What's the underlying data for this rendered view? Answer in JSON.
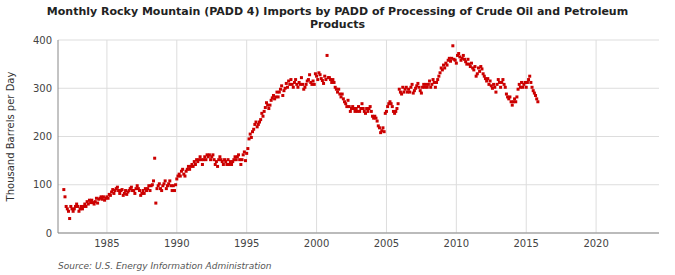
{
  "chart_data": {
    "type": "scatter",
    "title": "Monthly Rocky Mountain (PADD 4) Imports by PADD of Processing of Crude Oil and Petroleum\nProducts",
    "y_label": "Thousand Barrels per Day",
    "source": "Source: U.S. Energy Information Administration",
    "color": "#CC0000",
    "marker": "square",
    "grid": true,
    "xlim": [
      1981.5,
      2024.5
    ],
    "xticks": [
      1985,
      1990,
      1995,
      2000,
      2005,
      2010,
      2015,
      2020
    ],
    "ylim": [
      0,
      400
    ],
    "yticks": [
      0,
      100,
      200,
      300,
      400
    ],
    "x": [
      1981.9166666666667,
      1982,
      1982.0833333333333,
      1982.1666666666667,
      1982.25,
      1982.3333333333333,
      1982.4166666666667,
      1982.5,
      1982.5833333333333,
      1982.6666666666667,
      1982.75,
      1982.8333333333333,
      1982.9166666666667,
      1983,
      1983.0833333333333,
      1983.1666666666667,
      1983.25,
      1983.3333333333333,
      1983.4166666666667,
      1983.5,
      1983.5833333333333,
      1983.6666666666667,
      1983.75,
      1983.8333333333333,
      1983.9166666666667,
      1984,
      1984.0833333333333,
      1984.1666666666667,
      1984.25,
      1984.3333333333333,
      1984.4166666666667,
      1984.5,
      1984.5833333333333,
      1984.6666666666667,
      1984.75,
      1984.8333333333333,
      1984.9166666666667,
      1985,
      1985.0833333333333,
      1985.1666666666667,
      1985.25,
      1985.3333333333333,
      1985.4166666666667,
      1985.5,
      1985.5833333333333,
      1985.6666666666667,
      1985.75,
      1985.8333333333333,
      1985.9166666666667,
      1986,
      1986.0833333333333,
      1986.1666666666667,
      1986.25,
      1986.3333333333333,
      1986.4166666666667,
      1986.5,
      1986.5833333333333,
      1986.6666666666667,
      1986.75,
      1986.8333333333333,
      1986.9166666666667,
      1987,
      1987.0833333333333,
      1987.1666666666667,
      1987.25,
      1987.3333333333333,
      1987.4166666666667,
      1987.5,
      1987.5833333333333,
      1987.6666666666667,
      1987.75,
      1987.8333333333333,
      1987.9166666666667,
      1988,
      1988.0833333333333,
      1988.1666666666667,
      1988.25,
      1988.3333333333333,
      1988.4166666666667,
      1988.5,
      1988.5833333333333,
      1988.6666666666667,
      1988.75,
      1988.8333333333333,
      1988.9166666666667,
      1989,
      1989.0833333333333,
      1989.1666666666667,
      1989.25,
      1989.3333333333333,
      1989.4166666666667,
      1989.5,
      1989.5833333333333,
      1989.6666666666667,
      1989.75,
      1989.8333333333333,
      1989.9166666666667,
      1990,
      1990.0833333333333,
      1990.1666666666667,
      1990.25,
      1990.3333333333333,
      1990.4166666666667,
      1990.5,
      1990.5833333333333,
      1990.6666666666667,
      1990.75,
      1990.8333333333333,
      1990.9166666666667,
      1991,
      1991.0833333333333,
      1991.1666666666667,
      1991.25,
      1991.3333333333333,
      1991.4166666666667,
      1991.5,
      1991.5833333333333,
      1991.6666666666667,
      1991.75,
      1991.8333333333333,
      1991.9166666666667,
      1992,
      1992.0833333333333,
      1992.1666666666667,
      1992.25,
      1992.3333333333333,
      1992.4166666666667,
      1992.5,
      1992.5833333333333,
      1992.6666666666667,
      1992.75,
      1992.8333333333333,
      1992.9166666666667,
      1993,
      1993.0833333333333,
      1993.1666666666667,
      1993.25,
      1993.3333333333333,
      1993.4166666666667,
      1993.5,
      1993.5833333333333,
      1993.6666666666667,
      1993.75,
      1993.8333333333333,
      1993.9166666666667,
      1994,
      1994.0833333333333,
      1994.1666666666667,
      1994.25,
      1994.3333333333333,
      1994.4166666666667,
      1994.5,
      1994.5833333333333,
      1994.6666666666667,
      1994.75,
      1994.8333333333333,
      1994.9166666666667,
      1995,
      1995.0833333333333,
      1995.1666666666667,
      1995.25,
      1995.3333333333333,
      1995.4166666666667,
      1995.5,
      1995.5833333333333,
      1995.6666666666667,
      1995.75,
      1995.8333333333333,
      1995.9166666666667,
      1996,
      1996.0833333333333,
      1996.1666666666667,
      1996.25,
      1996.3333333333333,
      1996.4166666666667,
      1996.5,
      1996.5833333333333,
      1996.6666666666667,
      1996.75,
      1996.8333333333333,
      1996.9166666666667,
      1997,
      1997.0833333333333,
      1997.1666666666667,
      1997.25,
      1997.3333333333333,
      1997.4166666666667,
      1997.5,
      1997.5833333333333,
      1997.6666666666667,
      1997.75,
      1997.8333333333333,
      1997.9166666666667,
      1998,
      1998.0833333333333,
      1998.1666666666667,
      1998.25,
      1998.3333333333333,
      1998.4166666666667,
      1998.5,
      1998.5833333333333,
      1998.6666666666667,
      1998.75,
      1998.8333333333333,
      1998.9166666666667,
      1999,
      1999.0833333333333,
      1999.1666666666667,
      1999.25,
      1999.3333333333333,
      1999.4166666666667,
      1999.5,
      1999.5833333333333,
      1999.6666666666667,
      1999.75,
      1999.8333333333333,
      1999.9166666666667,
      2000,
      2000.0833333333333,
      2000.1666666666667,
      2000.25,
      2000.3333333333333,
      2000.4166666666667,
      2000.5,
      2000.5833333333333,
      2000.6666666666667,
      2000.75,
      2000.8333333333333,
      2000.9166666666667,
      2001,
      2001.0833333333333,
      2001.1666666666667,
      2001.25,
      2001.3333333333333,
      2001.4166666666667,
      2001.5,
      2001.5833333333333,
      2001.6666666666667,
      2001.75,
      2001.8333333333333,
      2001.9166666666667,
      2002,
      2002.0833333333333,
      2002.1666666666667,
      2002.25,
      2002.3333333333333,
      2002.4166666666667,
      2002.5,
      2002.5833333333333,
      2002.6666666666667,
      2002.75,
      2002.8333333333333,
      2002.9166666666667,
      2003,
      2003.0833333333333,
      2003.1666666666667,
      2003.25,
      2003.3333333333333,
      2003.4166666666667,
      2003.5,
      2003.5833333333333,
      2003.6666666666667,
      2003.75,
      2003.8333333333333,
      2003.9166666666667,
      2004,
      2004.0833333333333,
      2004.1666666666667,
      2004.25,
      2004.3333333333333,
      2004.4166666666667,
      2004.5,
      2004.5833333333333,
      2004.6666666666667,
      2004.75,
      2004.8333333333333,
      2004.9166666666667,
      2005,
      2005.0833333333333,
      2005.1666666666667,
      2005.25,
      2005.3333333333333,
      2005.4166666666667,
      2005.5,
      2005.5833333333333,
      2005.6666666666667,
      2005.75,
      2005.8333333333333,
      2005.9166666666667,
      2006,
      2006.0833333333333,
      2006.1666666666667,
      2006.25,
      2006.3333333333333,
      2006.4166666666667,
      2006.5,
      2006.5833333333333,
      2006.6666666666667,
      2006.75,
      2006.8333333333333,
      2006.9166666666667,
      2007,
      2007.0833333333333,
      2007.1666666666667,
      2007.25,
      2007.3333333333333,
      2007.4166666666667,
      2007.5,
      2007.5833333333333,
      2007.6666666666667,
      2007.75,
      2007.8333333333333,
      2007.9166666666667,
      2008,
      2008.0833333333333,
      2008.1666666666667,
      2008.25,
      2008.3333333333333,
      2008.4166666666667,
      2008.5,
      2008.5833333333333,
      2008.6666666666667,
      2008.75,
      2008.8333333333333,
      2008.9166666666667,
      2009,
      2009.0833333333333,
      2009.1666666666667,
      2009.25,
      2009.3333333333333,
      2009.4166666666667,
      2009.5,
      2009.5833333333333,
      2009.6666666666667,
      2009.75,
      2009.8333333333333,
      2009.9166666666667,
      2010,
      2010.0833333333333,
      2010.1666666666667,
      2010.25,
      2010.3333333333333,
      2010.4166666666667,
      2010.5,
      2010.5833333333333,
      2010.6666666666667,
      2010.75,
      2010.8333333333333,
      2010.9166666666667,
      2011,
      2011.0833333333333,
      2011.1666666666667,
      2011.25,
      2011.3333333333333,
      2011.4166666666667,
      2011.5,
      2011.5833333333333,
      2011.6666666666667,
      2011.75,
      2011.8333333333333,
      2011.9166666666667,
      2012,
      2012.0833333333333,
      2012.1666666666667,
      2012.25,
      2012.3333333333333,
      2012.4166666666667,
      2012.5,
      2012.5833333333333,
      2012.6666666666667,
      2012.75,
      2012.8333333333333,
      2012.9166666666667,
      2013,
      2013.0833333333333,
      2013.1666666666667,
      2013.25,
      2013.3333333333333,
      2013.4166666666667,
      2013.5,
      2013.5833333333333,
      2013.6666666666667,
      2013.75,
      2013.8333333333333,
      2013.9166666666667,
      2014,
      2014.0833333333333,
      2014.1666666666667,
      2014.25,
      2014.3333333333333,
      2014.4166666666667,
      2014.5,
      2014.5833333333333,
      2014.6666666666667,
      2014.75,
      2014.8333333333333,
      2014.9166666666667,
      2015,
      2015.0833333333333,
      2015.1666666666667,
      2015.25,
      2015.3333333333333,
      2015.4166666666667,
      2015.5,
      2015.5833333333333,
      2015.6666666666667,
      2015.75,
      2015.8333333333333
    ],
    "values": [
      90,
      75,
      55,
      50,
      45,
      30,
      55,
      50,
      45,
      50,
      55,
      60,
      55,
      45,
      50,
      55,
      50,
      55,
      60,
      55,
      65,
      60,
      68,
      63,
      68,
      63,
      60,
      65,
      72,
      62,
      70,
      72,
      75,
      70,
      75,
      68,
      72,
      75,
      72,
      80,
      78,
      85,
      90,
      82,
      88,
      92,
      95,
      88,
      82,
      88,
      90,
      78,
      82,
      88,
      80,
      85,
      88,
      92,
      95,
      88,
      88,
      82,
      92,
      98,
      92,
      88,
      78,
      82,
      88,
      82,
      92,
      88,
      92,
      98,
      88,
      98,
      100,
      108,
      155,
      62,
      92,
      98,
      102,
      92,
      88,
      98,
      102,
      108,
      92,
      98,
      102,
      108,
      98,
      88,
      98,
      88,
      100,
      112,
      118,
      122,
      118,
      128,
      132,
      122,
      118,
      128,
      132,
      138,
      132,
      138,
      142,
      138,
      148,
      142,
      152,
      148,
      152,
      158,
      152,
      142,
      152,
      158,
      152,
      162,
      158,
      162,
      152,
      158,
      162,
      152,
      142,
      148,
      138,
      152,
      158,
      152,
      148,
      142,
      152,
      148,
      142,
      152,
      142,
      148,
      142,
      148,
      152,
      158,
      152,
      158,
      162,
      152,
      142,
      152,
      162,
      168,
      150,
      165,
      175,
      195,
      205,
      198,
      210,
      215,
      225,
      230,
      220,
      225,
      230,
      235,
      248,
      242,
      252,
      260,
      270,
      265,
      258,
      265,
      275,
      280,
      285,
      278,
      282,
      292,
      282,
      292,
      298,
      305,
      285,
      295,
      300,
      310,
      302,
      315,
      308,
      318,
      308,
      302,
      312,
      318,
      308,
      302,
      312,
      308,
      322,
      308,
      298,
      302,
      308,
      315,
      318,
      328,
      312,
      308,
      315,
      308,
      330,
      325,
      318,
      332,
      328,
      320,
      316,
      310,
      325,
      318,
      368,
      322,
      322,
      318,
      312,
      318,
      312,
      302,
      298,
      292,
      298,
      288,
      282,
      288,
      278,
      272,
      268,
      262,
      275,
      262,
      252,
      258,
      262,
      258,
      252,
      258,
      252,
      262,
      252,
      258,
      268,
      258,
      252,
      248,
      258,
      252,
      258,
      262,
      252,
      242,
      238,
      242,
      238,
      232,
      222,
      218,
      208,
      212,
      218,
      210,
      248,
      252,
      262,
      268,
      272,
      268,
      262,
      252,
      248,
      252,
      258,
      268,
      298,
      292,
      288,
      302,
      292,
      298,
      302,
      292,
      298,
      292,
      302,
      308,
      290,
      295,
      300,
      305,
      310,
      302,
      295,
      290,
      302,
      308,
      302,
      308,
      302,
      308,
      315,
      302,
      308,
      318,
      312,
      302,
      312,
      318,
      325,
      332,
      342,
      338,
      348,
      342,
      352,
      348,
      358,
      362,
      356,
      362,
      388,
      360,
      358,
      352,
      368,
      372,
      365,
      358,
      362,
      368,
      360,
      355,
      350,
      360,
      350,
      345,
      352,
      342,
      338,
      345,
      325,
      330,
      342,
      335,
      345,
      340,
      330,
      325,
      320,
      315,
      320,
      308,
      315,
      305,
      300,
      308,
      302,
      292,
      308,
      318,
      312,
      302,
      312,
      318,
      308,
      302,
      288,
      282,
      278,
      282,
      272,
      265,
      272,
      278,
      272,
      282,
      298,
      308,
      302,
      312,
      302,
      308,
      312,
      302,
      312,
      318,
      325,
      312,
      302,
      295,
      290,
      285,
      278,
      272
    ]
  }
}
